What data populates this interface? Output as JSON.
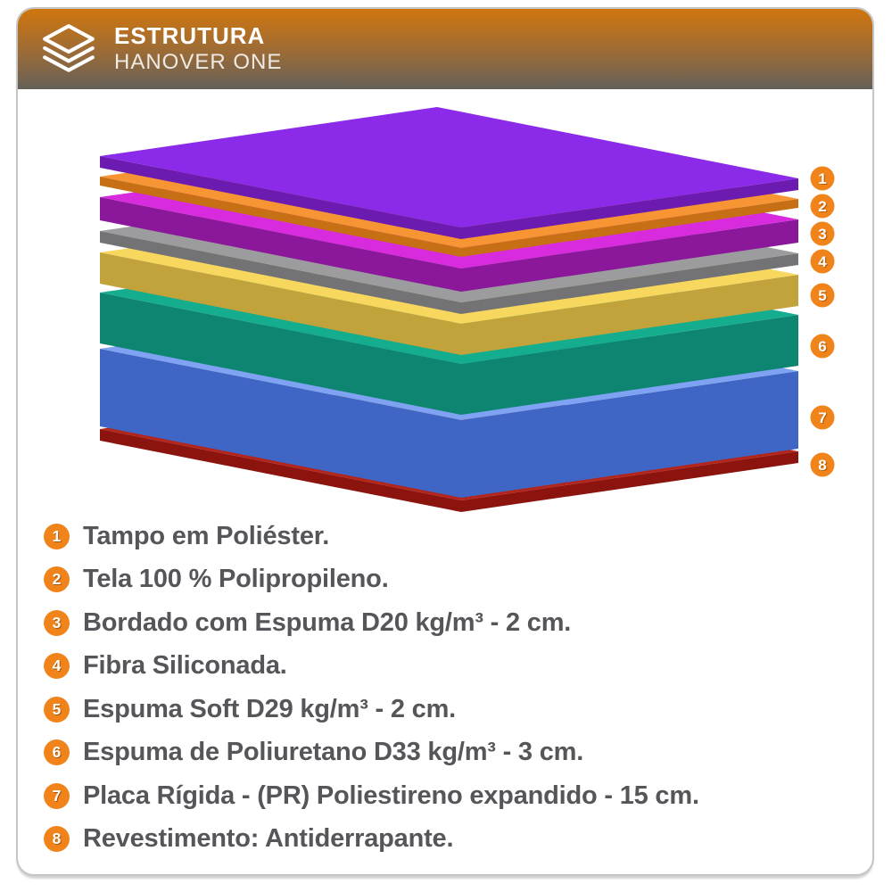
{
  "header": {
    "title": "ESTRUTURA",
    "subtitle": "HANOVER ONE",
    "icon": "layers-icon"
  },
  "colors": {
    "accent_orange": "#f0831a",
    "badge_text_shadow": "#b85f07",
    "legend_text": "#55565a",
    "header_gradient_top": "#d0760e",
    "header_gradient_bottom": "#646058",
    "card_border": "#c5c5c5"
  },
  "layers": [
    {
      "num": "1",
      "label": "Tampo em Poliéster.",
      "top_color": "#8b2be9",
      "side_color": "#6b1baf"
    },
    {
      "num": "2",
      "label": "Tela 100 % Polipropileno.",
      "top_color": "#f79433",
      "side_color": "#c76f15"
    },
    {
      "num": "3",
      "label": "Bordado com Espuma D20 kg/m³ - 2 cm.",
      "top_color": "#d92bde",
      "side_color": "#8b189b"
    },
    {
      "num": "4",
      "label": "Fibra Siliconada.",
      "top_color": "#9c9c9e",
      "side_color": "#737376"
    },
    {
      "num": "5",
      "label": "Espuma Soft D29 kg/m³ - 2 cm.",
      "top_color": "#f8d75f",
      "side_color": "#c2a23b"
    },
    {
      "num": "6",
      "label": "Espuma de Poliuretano D33 kg/m³ - 3 cm.",
      "top_color": "#14ad8d",
      "side_color": "#0d8571"
    },
    {
      "num": "7",
      "label": "Placa Rígida - (PR) Poliestireno expandido - 15 cm.",
      "top_color": "#7fa3f2",
      "side_color": "#3f66c5"
    },
    {
      "num": "8",
      "label": "Revestimento: Antiderrapante.",
      "top_color": "#b3241b",
      "side_color": "#8b150e"
    }
  ]
}
